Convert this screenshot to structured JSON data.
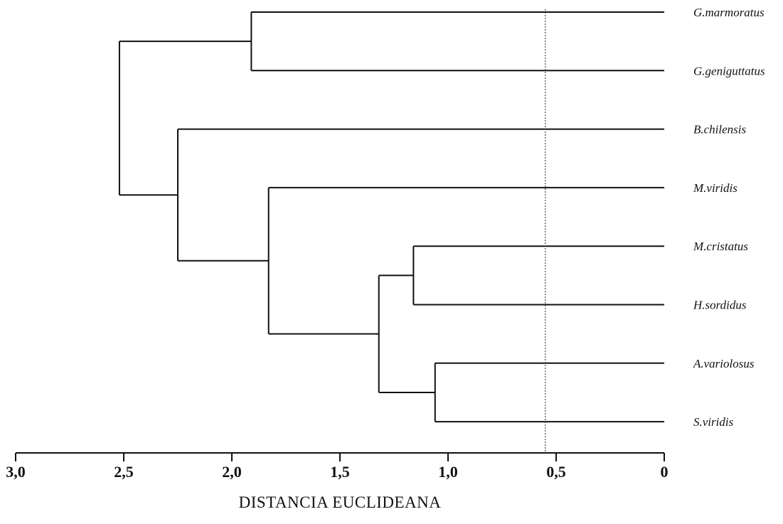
{
  "chart_data": {
    "type": "dendrogram",
    "title": "",
    "xlabel": "DISTANCIA EUCLIDEANA",
    "ylabel": "",
    "xlim": [
      3.0,
      0.0
    ],
    "x_reversed": true,
    "x_ticks": [
      {
        "value": 3.0,
        "label": "3,0"
      },
      {
        "value": 2.5,
        "label": "2,5"
      },
      {
        "value": 2.0,
        "label": "2,0"
      },
      {
        "value": 1.5,
        "label": "1,5"
      },
      {
        "value": 1.0,
        "label": "1,0"
      },
      {
        "value": 0.5,
        "label": "0,5"
      },
      {
        "value": 0.0,
        "label": "0"
      }
    ],
    "leaves": [
      "G.marmoratus",
      "G.geniguttatus",
      "B.chilensis",
      "M.viridis",
      "M.cristatus",
      "H.sordidus",
      "A.variolosus",
      "S.viridis"
    ],
    "merges": [
      {
        "id": "n1",
        "children": [
          "G.marmoratus",
          "G.geniguttatus"
        ],
        "distance": 1.91
      },
      {
        "id": "n2",
        "children": [
          "M.cristatus",
          "H.sordidus"
        ],
        "distance": 1.16
      },
      {
        "id": "n3",
        "children": [
          "A.variolosus",
          "S.viridis"
        ],
        "distance": 1.06
      },
      {
        "id": "n4",
        "children": [
          "n2",
          "n3"
        ],
        "distance": 1.32
      },
      {
        "id": "n5",
        "children": [
          "M.viridis",
          "n4"
        ],
        "distance": 1.83
      },
      {
        "id": "n6",
        "children": [
          "B.chilensis",
          "n5"
        ],
        "distance": 2.25
      },
      {
        "id": "n7",
        "children": [
          "n1",
          "n6"
        ],
        "distance": 2.52
      }
    ],
    "cut_line": 0.55,
    "grid": false
  }
}
